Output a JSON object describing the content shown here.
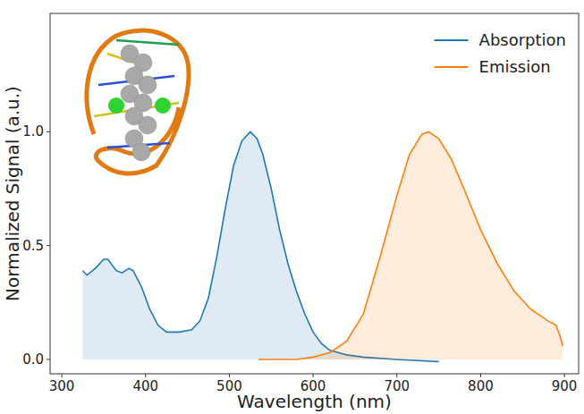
{
  "chart_data": {
    "type": "area",
    "x_label": "Wavelength (nm)",
    "y_label": "Normalized Signal (a.u.)",
    "xlim": [
      286,
      917
    ],
    "ylim": [
      -0.063,
      1.52
    ],
    "xticks": [
      300,
      400,
      500,
      600,
      700,
      800,
      900
    ],
    "yticks": [
      {
        "value": 0,
        "label": "0.0"
      },
      {
        "value": 0.5,
        "label": "0.5"
      },
      {
        "value": 1,
        "label": "1.0"
      }
    ],
    "grid": false,
    "legend": "upper right",
    "series": [
      {
        "name": "Absorption",
        "color": "#1f77b4",
        "x": [
          325,
          330,
          340,
          350,
          355,
          365,
          372,
          380,
          385,
          395,
          405,
          415,
          425,
          440,
          455,
          465,
          475,
          485,
          495,
          505,
          515,
          525,
          533,
          540,
          550,
          560,
          570,
          580,
          590,
          600,
          610,
          620,
          640,
          660,
          700,
          750
        ],
        "values": [
          0.39,
          0.37,
          0.4,
          0.44,
          0.44,
          0.39,
          0.38,
          0.4,
          0.39,
          0.32,
          0.22,
          0.15,
          0.12,
          0.12,
          0.13,
          0.17,
          0.27,
          0.45,
          0.66,
          0.85,
          0.96,
          1.0,
          0.97,
          0.9,
          0.75,
          0.57,
          0.42,
          0.3,
          0.2,
          0.12,
          0.07,
          0.04,
          0.02,
          0.01,
          0.0,
          -0.01
        ]
      },
      {
        "name": "Emission",
        "color": "#ff7f0e",
        "x": [
          535,
          580,
          600,
          620,
          640,
          660,
          680,
          700,
          715,
          730,
          738,
          750,
          765,
          780,
          800,
          820,
          840,
          860,
          880,
          890,
          895,
          898
        ],
        "values": [
          0.0,
          0.0,
          0.01,
          0.03,
          0.08,
          0.2,
          0.45,
          0.72,
          0.9,
          0.99,
          1.0,
          0.97,
          0.88,
          0.75,
          0.57,
          0.42,
          0.3,
          0.22,
          0.17,
          0.15,
          0.1,
          0.06
        ]
      }
    ]
  }
}
